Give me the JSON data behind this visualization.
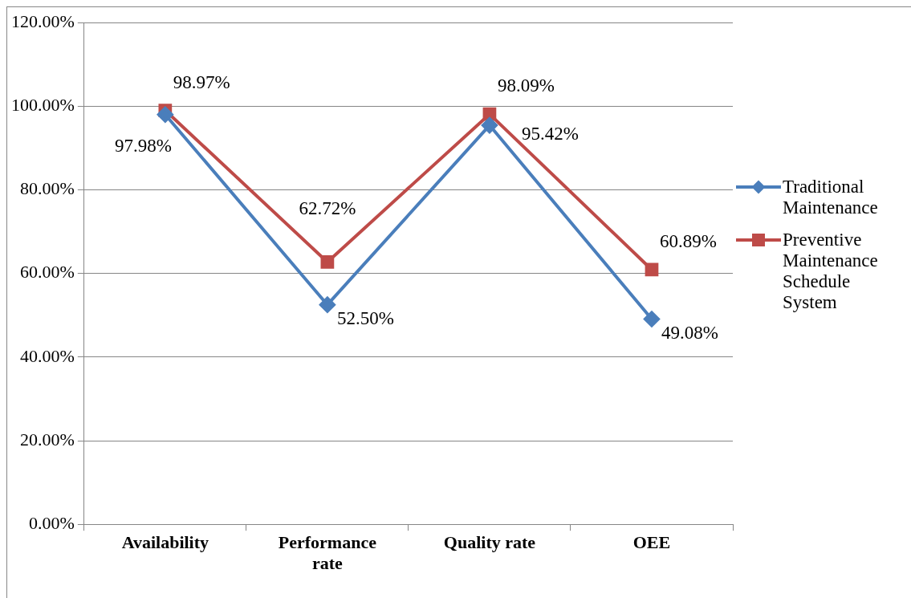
{
  "chart_data": {
    "type": "line",
    "categories": [
      "Availability",
      "Performance rate",
      "Quality rate",
      "OEE"
    ],
    "series": [
      {
        "name": "Traditional Maintenance",
        "color": "#4a7ebb",
        "marker": "diamond",
        "values": [
          97.98,
          52.5,
          95.42,
          49.08
        ],
        "value_labels": [
          "97.98%",
          "52.50%",
          "95.42%",
          "49.08%"
        ]
      },
      {
        "name": "Preventive Maintenance Schedule System",
        "color": "#be4b48",
        "marker": "square",
        "values": [
          98.97,
          62.72,
          98.09,
          60.89
        ],
        "value_labels": [
          "98.97%",
          "62.72%",
          "98.09%",
          "60.89%"
        ]
      }
    ],
    "ylim": [
      0,
      120
    ],
    "yticks": [
      {
        "value": 0,
        "label": "0.00%"
      },
      {
        "value": 20,
        "label": "20.00%"
      },
      {
        "value": 40,
        "label": "40.00%"
      },
      {
        "value": 60,
        "label": "60.00%"
      },
      {
        "value": 80,
        "label": "80.00%"
      },
      {
        "value": 100,
        "label": "100.00%"
      },
      {
        "value": 120,
        "label": "120.00%"
      }
    ],
    "grid": "y",
    "legend": "right",
    "line_style": "solid"
  }
}
